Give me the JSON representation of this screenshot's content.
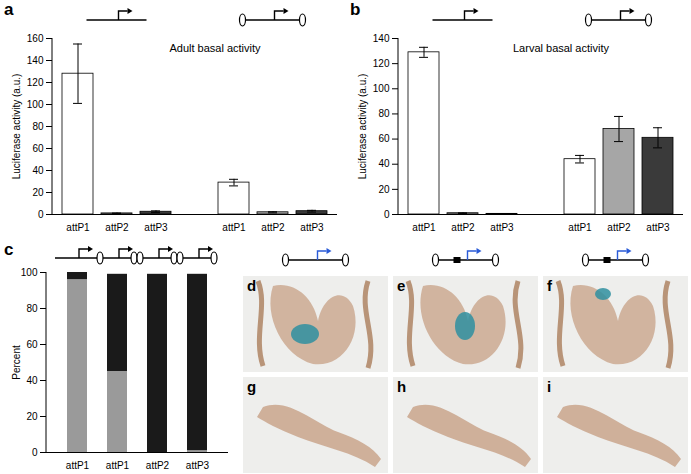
{
  "chart_data": [
    {
      "panel_label": "a",
      "type": "bar",
      "title": "Adult basal activity",
      "ylabel": "Luciferase activity (a.u.)",
      "categories": [
        "attP1",
        "attP2",
        "attP3",
        "attP1",
        "attP2",
        "attP3"
      ],
      "values": [
        128,
        1,
        2.5,
        29,
        2,
        3
      ],
      "errors": [
        27,
        0.3,
        0.8,
        3,
        0.5,
        0.8
      ],
      "colors": [
        "#ffffff",
        "#a6a6a6",
        "#3a3a3a",
        "#ffffff",
        "#a6a6a6",
        "#3a3a3a"
      ],
      "ylim": [
        0,
        160
      ],
      "yticks": [
        0,
        20,
        40,
        60,
        80,
        100,
        120,
        140,
        160
      ],
      "grid": false
    },
    {
      "panel_label": "b",
      "type": "bar",
      "title": "Larval basal activity",
      "ylabel": "Luciferase activity (a.u.)",
      "categories": [
        "attP1",
        "attP2",
        "attP3",
        "attP1",
        "attP2",
        "attP3"
      ],
      "values": [
        129,
        1,
        0.5,
        44,
        68,
        61
      ],
      "errors": [
        4,
        0.3,
        0.2,
        3,
        10,
        8
      ],
      "colors": [
        "#ffffff",
        "#a6a6a6",
        "#3a3a3a",
        "#ffffff",
        "#a6a6a6",
        "#3a3a3a"
      ],
      "ylim": [
        0,
        140
      ],
      "yticks": [
        0,
        20,
        40,
        60,
        80,
        100,
        120,
        140
      ],
      "grid": false
    },
    {
      "panel_label": "c",
      "type": "bar",
      "stacked": true,
      "ylabel": "Percent",
      "categories": [
        "attP1",
        "attP1",
        "attP2",
        "attP3"
      ],
      "series": [
        {
          "color": "#9a9a9a",
          "values": [
            96,
            45,
            0,
            1
          ]
        },
        {
          "color": "#1a1a1a",
          "values": [
            4,
            54,
            99,
            98
          ]
        }
      ],
      "ylim": [
        0,
        100
      ],
      "yticks": [
        0,
        20,
        40,
        60,
        80,
        100
      ],
      "grid": false
    }
  ],
  "images": [
    {
      "panel_label": "d"
    },
    {
      "panel_label": "e"
    },
    {
      "panel_label": "f"
    },
    {
      "panel_label": "g"
    },
    {
      "panel_label": "h"
    },
    {
      "panel_label": "i"
    }
  ]
}
